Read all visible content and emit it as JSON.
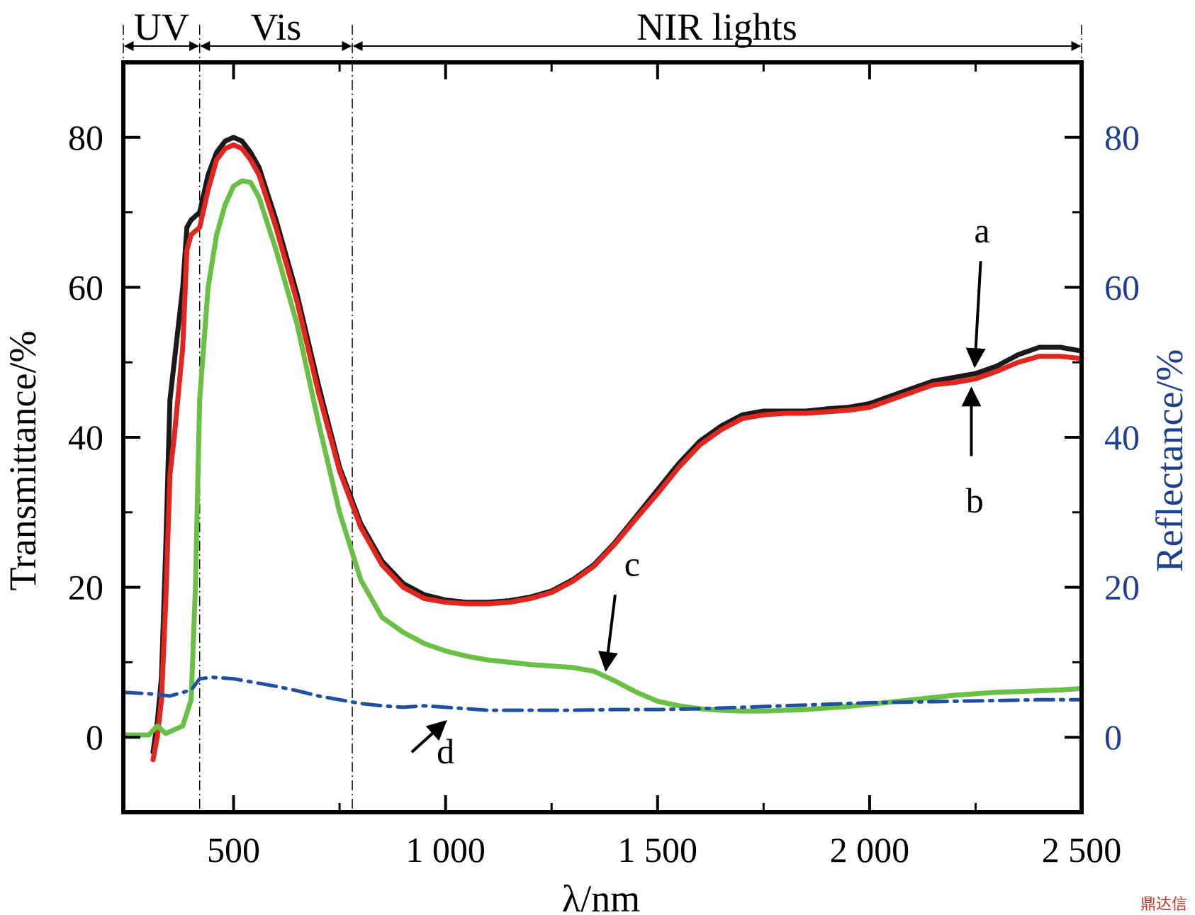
{
  "chart_data": {
    "type": "line",
    "xlabel": "λ/nm",
    "ylabel_left": "Transmittance/%",
    "ylabel_right": "Reflectance/%",
    "xlim": [
      240,
      2500
    ],
    "ylim_left": [
      -10,
      90
    ],
    "ylim_right": [
      -10,
      90
    ],
    "x_ticks": [
      500,
      1000,
      1500,
      2000,
      2500
    ],
    "x_tick_labels": [
      "500",
      "1 000",
      "1 500",
      "2 000",
      "2 500"
    ],
    "y_ticks": [
      0,
      20,
      40,
      60,
      80
    ],
    "y_tick_labels": [
      "0",
      "20",
      "40",
      "60",
      "80"
    ],
    "right_tick_labels": [
      "0",
      "20",
      "40",
      "60",
      "80"
    ],
    "grid": false,
    "region_bounds": [
      240,
      420,
      780,
      2500
    ],
    "regions": [
      {
        "label": "UV",
        "from": 240,
        "to": 420
      },
      {
        "label": "Vis",
        "from": 420,
        "to": 780
      },
      {
        "label": "NIR lights",
        "from": 780,
        "to": 2500
      }
    ],
    "colors": {
      "a": "#1a1a1a",
      "b": "#e2261f",
      "c": "#6abf45",
      "d": "#1f4fa0",
      "right_axis": "#1f3f8f"
    },
    "series": [
      {
        "name": "a",
        "axis": "left",
        "x": [
          310,
          320,
          330,
          340,
          350,
          360,
          370,
          380,
          390,
          400,
          420,
          440,
          460,
          480,
          500,
          520,
          540,
          560,
          600,
          650,
          700,
          750,
          800,
          850,
          900,
          950,
          1000,
          1050,
          1100,
          1150,
          1200,
          1250,
          1300,
          1350,
          1400,
          1450,
          1500,
          1550,
          1600,
          1650,
          1700,
          1750,
          1800,
          1850,
          1900,
          1950,
          2000,
          2050,
          2100,
          2150,
          2200,
          2250,
          2300,
          2350,
          2400,
          2450,
          2500
        ],
        "y": [
          -2,
          2,
          8,
          25,
          45,
          50,
          55,
          60,
          68,
          69,
          70,
          75,
          78,
          79.5,
          80,
          79.5,
          78,
          76,
          69,
          59,
          47,
          36,
          28.5,
          23.5,
          20.5,
          19,
          18.3,
          18,
          18,
          18.2,
          18.7,
          19.5,
          21,
          23,
          26,
          29.5,
          33,
          36.5,
          39.5,
          41.5,
          43,
          43.5,
          43.5,
          43.5,
          43.8,
          44,
          44.5,
          45.5,
          46.5,
          47.5,
          48,
          48.5,
          49.5,
          51,
          52,
          52,
          51.5
        ]
      },
      {
        "name": "b",
        "axis": "left",
        "x": [
          310,
          320,
          330,
          340,
          350,
          360,
          370,
          380,
          390,
          400,
          420,
          440,
          460,
          480,
          500,
          520,
          540,
          560,
          600,
          650,
          700,
          750,
          800,
          850,
          900,
          950,
          1000,
          1050,
          1100,
          1150,
          1200,
          1250,
          1300,
          1350,
          1400,
          1450,
          1500,
          1550,
          1600,
          1650,
          1700,
          1750,
          1800,
          1850,
          1900,
          1950,
          2000,
          2050,
          2100,
          2150,
          2200,
          2250,
          2300,
          2350,
          2400,
          2450,
          2500
        ],
        "y": [
          -3,
          0,
          5,
          18,
          35,
          40,
          46,
          52,
          65,
          67,
          68,
          73,
          77,
          78.5,
          79,
          78.5,
          77,
          75,
          68,
          58,
          46,
          35.5,
          28,
          23,
          20,
          18.5,
          18,
          17.8,
          17.8,
          18,
          18.5,
          19.3,
          20.8,
          22.8,
          25.8,
          29.2,
          32.5,
          36,
          39,
          41,
          42.5,
          43,
          43.2,
          43.2,
          43.4,
          43.6,
          44,
          45,
          46,
          47,
          47.3,
          47.8,
          48.8,
          50,
          50.8,
          50.8,
          50.5
        ]
      },
      {
        "name": "c",
        "axis": "left",
        "x": [
          240,
          300,
          320,
          340,
          360,
          380,
          400,
          410,
          420,
          440,
          460,
          480,
          500,
          520,
          540,
          560,
          600,
          650,
          700,
          750,
          800,
          850,
          900,
          950,
          1000,
          1050,
          1100,
          1150,
          1200,
          1250,
          1300,
          1350,
          1400,
          1450,
          1500,
          1550,
          1600,
          1650,
          1700,
          1750,
          1800,
          1850,
          1900,
          1950,
          2000,
          2050,
          2100,
          2150,
          2200,
          2250,
          2300,
          2350,
          2400,
          2450,
          2500
        ],
        "y": [
          0.3,
          0.3,
          1.5,
          0.5,
          1,
          1.5,
          5,
          20,
          45,
          60,
          67,
          71,
          73.5,
          74.2,
          74,
          72,
          65,
          55,
          42,
          30,
          21,
          16,
          14,
          12.5,
          11.5,
          10.8,
          10.3,
          10,
          9.7,
          9.5,
          9.3,
          8.8,
          7.5,
          6,
          4.8,
          4.2,
          3.8,
          3.6,
          3.5,
          3.5,
          3.6,
          3.7,
          3.9,
          4.1,
          4.4,
          4.7,
          5,
          5.3,
          5.6,
          5.8,
          6,
          6.1,
          6.2,
          6.3,
          6.5
        ]
      },
      {
        "name": "d",
        "axis": "right",
        "x": [
          240,
          300,
          350,
          400,
          420,
          450,
          500,
          550,
          600,
          650,
          700,
          750,
          800,
          850,
          900,
          950,
          1000,
          1050,
          1100,
          1200,
          1300,
          1400,
          1500,
          1600,
          1700,
          1800,
          1900,
          2000,
          2100,
          2200,
          2300,
          2400,
          2500
        ],
        "y": [
          6,
          5.8,
          5.5,
          6.3,
          7.8,
          8,
          7.8,
          7.3,
          6.8,
          6.2,
          5.5,
          5,
          4.5,
          4.2,
          4,
          4.2,
          4,
          3.8,
          3.6,
          3.6,
          3.6,
          3.7,
          3.7,
          3.8,
          4,
          4.2,
          4.4,
          4.6,
          4.7,
          4.8,
          4.9,
          5,
          5
        ]
      }
    ],
    "annotations": [
      {
        "label": "a",
        "text_at": [
          2265,
          66
        ],
        "arrow_from": [
          2262,
          63.5
        ],
        "arrow_to": [
          2248,
          49.5
        ]
      },
      {
        "label": "b",
        "text_at": [
          2248,
          30
        ],
        "arrow_from": [
          2240,
          37.5
        ],
        "arrow_to": [
          2240,
          46.5
        ]
      },
      {
        "label": "c",
        "text_at": [
          1440,
          21.5
        ],
        "arrow_from": [
          1400,
          19
        ],
        "arrow_to": [
          1378,
          9
        ]
      },
      {
        "label": "d",
        "text_at": [
          1000,
          -3.5
        ],
        "arrow_from": [
          920,
          -2
        ],
        "arrow_to": [
          1000,
          2.1
        ]
      }
    ]
  }
}
